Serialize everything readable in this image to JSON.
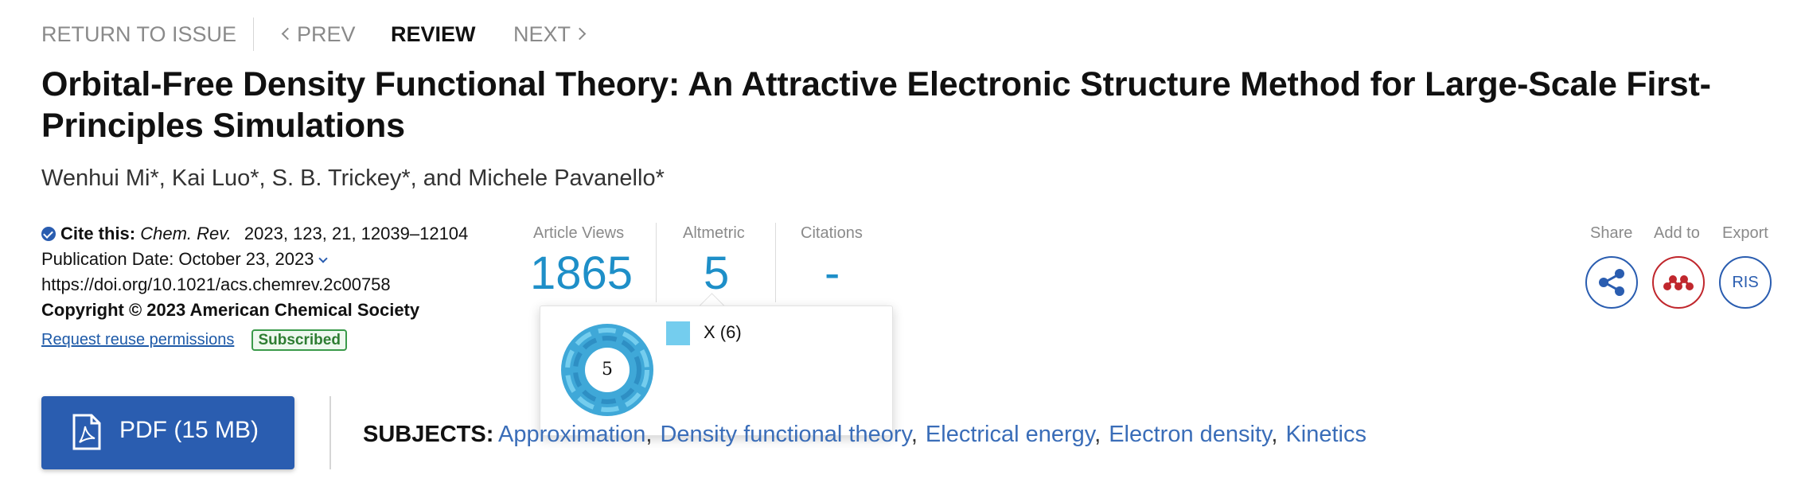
{
  "nav": {
    "return_label": "RETURN TO ISSUE",
    "prev_label": "PREV",
    "review_label": "REVIEW",
    "next_label": "NEXT"
  },
  "article": {
    "title": "Orbital-Free Density Functional Theory: An Attractive Electronic Structure Method for Large-Scale First-Principles Simulations",
    "authors": "Wenhui Mi*, Kai Luo*, S. B. Trickey*, and Michele Pavanello*"
  },
  "citation": {
    "cite_label": "Cite this:",
    "journal": "Chem. Rev.",
    "details": "2023, 123, 21, 12039–12104",
    "publication_date": "Publication Date: October 23, 2023",
    "doi": "https://doi.org/10.1021/acs.chemrev.2c00758",
    "copyright": "Copyright © 2023 American Chemical Society",
    "reuse_link": "Request reuse permissions",
    "access_badge": "Subscribed"
  },
  "metrics": {
    "views_label": "Article Views",
    "views_value": "1865",
    "altmetric_label": "Altmetric",
    "altmetric_value": "5",
    "citations_label": "Citations",
    "citations_value": "-"
  },
  "altmetric_popup": {
    "score": "5",
    "source_label": "X (6)",
    "source_color": "#74cdee"
  },
  "tools": {
    "share_label": "Share",
    "addto_label": "Add to",
    "export_label": "Export",
    "export_format": "RIS"
  },
  "pdf_button": {
    "label": "PDF (15 MB)"
  },
  "subjects": {
    "label": "SUBJECTS:",
    "items": [
      "Approximation",
      "Density functional theory",
      "Electrical energy",
      "Electron density",
      "Kinetics"
    ]
  },
  "colors": {
    "accent_blue": "#2a5db0",
    "metric_blue": "#1e8fc8",
    "mendeley_red": "#c0272d",
    "subscribed_green": "#2e7d32"
  }
}
